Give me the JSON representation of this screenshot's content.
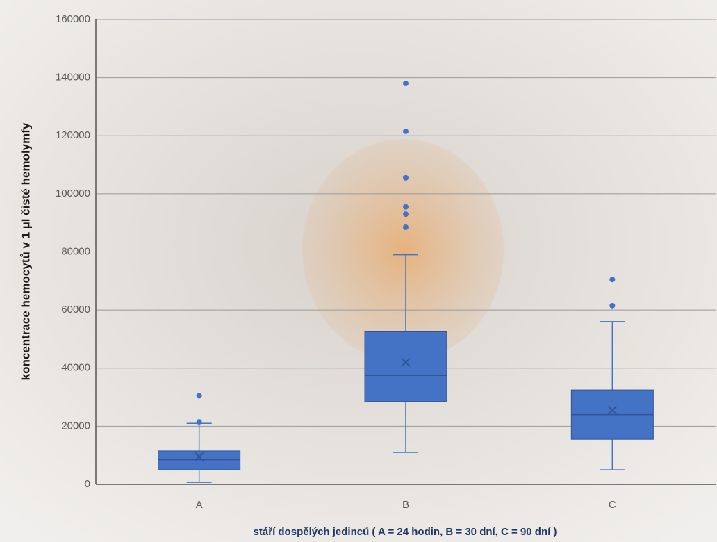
{
  "chart_data": {
    "type": "box",
    "categories": [
      "A",
      "B",
      "C"
    ],
    "color": "#4472c4",
    "boxes": [
      {
        "whisker_low": 700,
        "q1": 5000,
        "median": 8500,
        "q3": 11500,
        "whisker_high": 21000,
        "mean": 9500,
        "outliers": [
          21500,
          30500
        ]
      },
      {
        "whisker_low": 11000,
        "q1": 28500,
        "median": 37500,
        "q3": 52500,
        "whisker_high": 79000,
        "mean": 42000,
        "outliers": [
          88500,
          93000,
          95500,
          105500,
          121500,
          138000
        ]
      },
      {
        "whisker_low": 5000,
        "q1": 15500,
        "median": 24000,
        "q3": 32500,
        "whisker_high": 56000,
        "mean": 25500,
        "outliers": [
          61500,
          70500
        ]
      }
    ],
    "ylim": [
      0,
      160000
    ],
    "yticks": [
      0,
      20000,
      40000,
      60000,
      80000,
      100000,
      120000,
      140000,
      160000
    ],
    "grid": true,
    "y_label": "koncentrace hemocytů v 1 µl čisté hemolymfy",
    "x_label": "stáří dospělých jedinců ( A = 24 hodin, B = 30 dní, C = 90 dní )"
  }
}
